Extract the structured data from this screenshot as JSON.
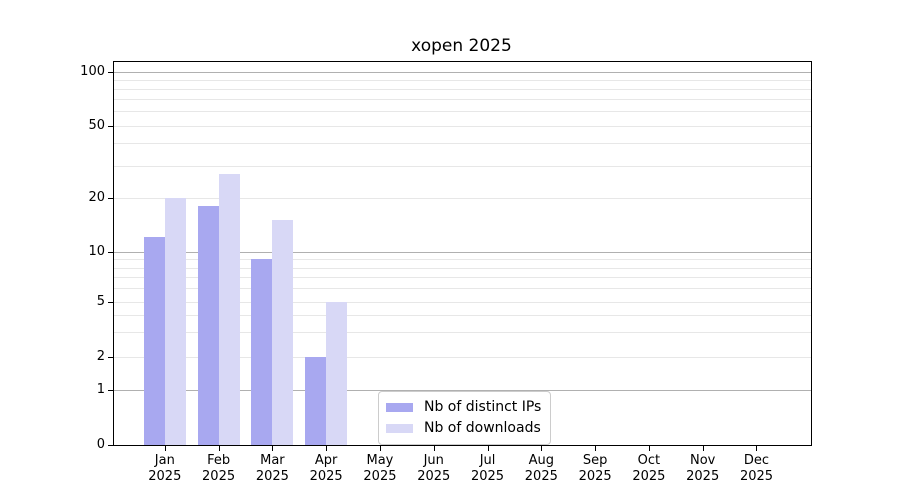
{
  "chart_data": {
    "type": "bar",
    "title": "xopen 2025",
    "months": [
      "Jan",
      "Feb",
      "Mar",
      "Apr",
      "May",
      "Jun",
      "Jul",
      "Aug",
      "Sep",
      "Oct",
      "Nov",
      "Dec"
    ],
    "year": "2025",
    "series": [
      {
        "name": "Nb of distinct IPs",
        "color": "#a8a8f0",
        "values": [
          12,
          18,
          9,
          2,
          0,
          0,
          0,
          0,
          0,
          0,
          0,
          0
        ]
      },
      {
        "name": "Nb of downloads",
        "color": "#d8d8f6",
        "values": [
          20,
          27,
          15,
          5,
          0,
          0,
          0,
          0,
          0,
          0,
          0,
          0
        ]
      }
    ],
    "y_ticks": [
      0,
      1,
      2,
      5,
      10,
      20,
      50,
      100
    ],
    "ylim": [
      0,
      114
    ],
    "yscale": "log-like with linear segment below 1",
    "grid": {
      "major_lines": [
        1,
        10,
        100
      ],
      "minor_lines": [
        2,
        3,
        4,
        5,
        6,
        7,
        8,
        9,
        20,
        30,
        40,
        50,
        60,
        70,
        80,
        90
      ]
    },
    "legend_position": "lower center",
    "xlabel": "",
    "ylabel": ""
  },
  "colors": {
    "background": "#ffffff",
    "axis": "#000000",
    "major_grid": "#b0b0b0",
    "minor_grid": "#e7e7e7",
    "series_ips": "#a8a8f0",
    "series_downloads": "#d8d8f6",
    "legend_border": "#cccccc"
  }
}
